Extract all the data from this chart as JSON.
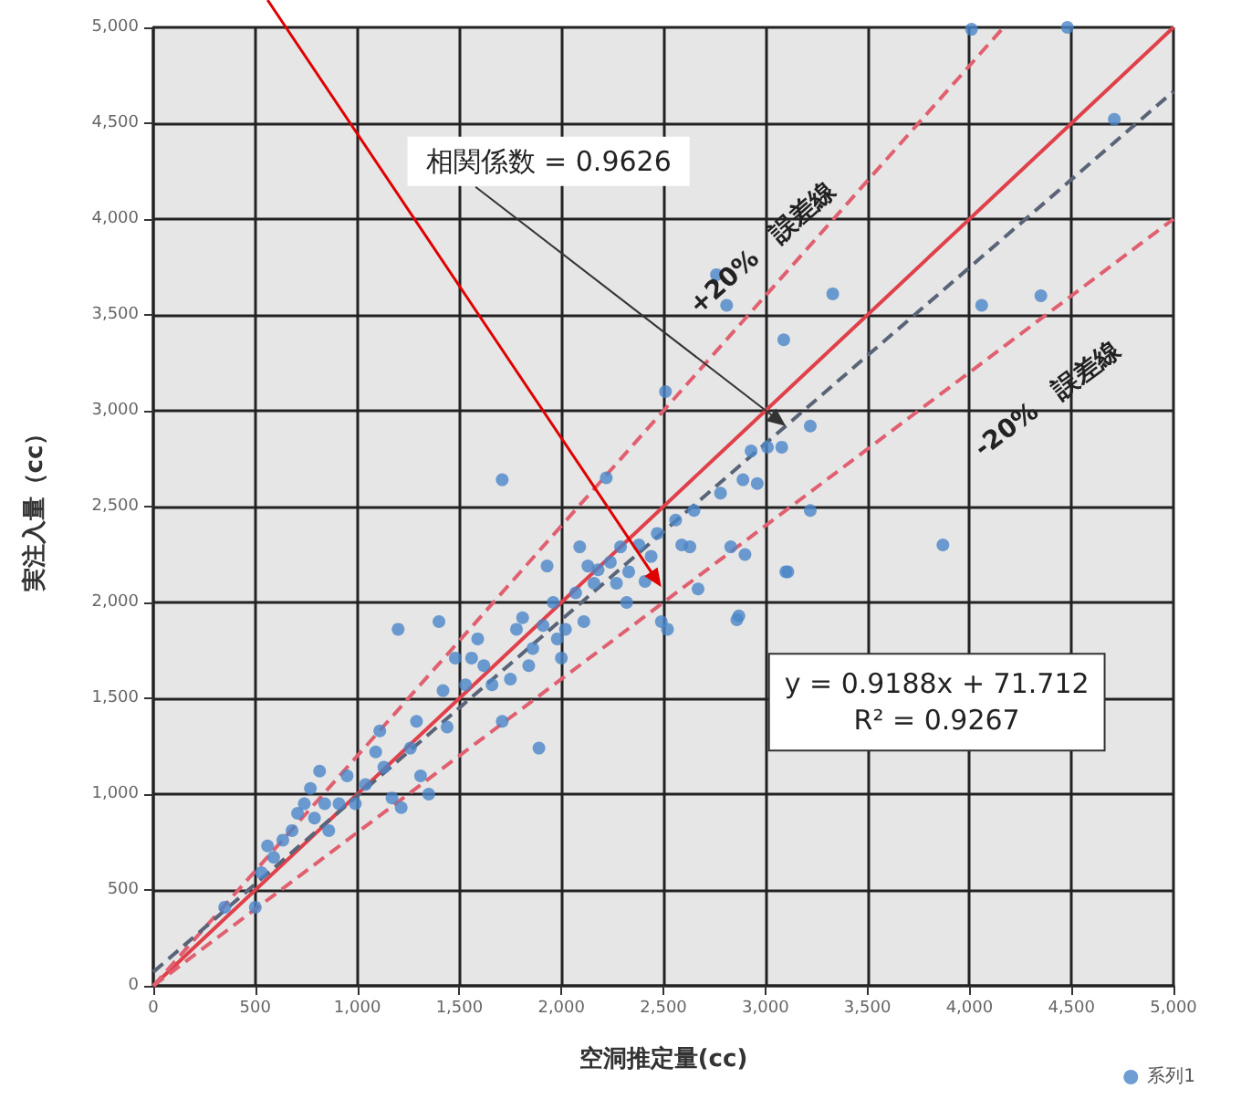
{
  "chart_data": {
    "type": "scatter",
    "xlabel": "空洞推定量(cc)",
    "ylabel": "実注入量（cc）",
    "xlim": [
      0,
      5000
    ],
    "ylim": [
      0,
      5000
    ],
    "xticks": [
      0,
      500,
      {
        "value": 1000,
        "label": "1,000"
      },
      {
        "value": 1500,
        "label": "1,500"
      },
      {
        "value": 2000,
        "label": "2,000"
      },
      {
        "value": 2500,
        "label": "2,500"
      },
      {
        "value": 3000,
        "label": "3,000"
      },
      {
        "value": 3500,
        "label": "3,500"
      },
      {
        "value": 4000,
        "label": "4,000"
      },
      {
        "value": 4500,
        "label": "4,500"
      },
      {
        "value": 5000,
        "label": "5,000"
      }
    ],
    "yticks": [
      0,
      500,
      {
        "value": 1000,
        "label": "1,000"
      },
      {
        "value": 1500,
        "label": "1,500"
      },
      {
        "value": 2000,
        "label": "2,000"
      },
      {
        "value": 2500,
        "label": "2,500"
      },
      {
        "value": 3000,
        "label": "3,000"
      },
      {
        "value": 3500,
        "label": "3,500"
      },
      {
        "value": 4000,
        "label": "4,000"
      },
      {
        "value": 4500,
        "label": "4,500"
      },
      {
        "value": 5000,
        "label": "5,000"
      }
    ],
    "grid": true,
    "legend": "bottom right",
    "series": [
      {
        "name": "系列1",
        "marker": "circle",
        "color": "#4a86c8",
        "x": [
          350,
          500,
          530,
          590,
          560,
          635,
          680,
          707,
          740,
          770,
          815,
          840,
          790,
          860,
          910,
          950,
          990,
          1040,
          1090,
          1110,
          1130,
          1170,
          1215,
          1200,
          1260,
          1290,
          1310,
          1350,
          1400,
          1440,
          1420,
          1480,
          1530,
          1560,
          1590,
          1620,
          1660,
          1710,
          1710,
          1750,
          1780,
          1810,
          1840,
          1860,
          1890,
          1910,
          1930,
          1960,
          1980,
          2000,
          2020,
          2070,
          2090,
          2110,
          2130,
          2160,
          2180,
          2220,
          2240,
          2270,
          2290,
          2320,
          2330,
          2380,
          2410,
          2440,
          2470,
          2490,
          2510,
          2520,
          2560,
          2590,
          2630,
          2650,
          2670,
          2760,
          2810,
          2780,
          2830,
          2870,
          2930,
          2960,
          3010,
          2890,
          3080,
          3090,
          3220,
          3220,
          3110,
          3330,
          3870,
          4060,
          4350,
          4480,
          4710,
          4010,
          2860,
          3100,
          2900
        ],
        "values": [
          410,
          410,
          590,
          670,
          730,
          760,
          810,
          900,
          950,
          1030,
          1120,
          950,
          875,
          810,
          950,
          1095,
          950,
          1050,
          1220,
          1330,
          1140,
          980,
          930,
          1860,
          1240,
          1380,
          1095,
          1000,
          1900,
          1350,
          1540,
          1710,
          1570,
          1710,
          1810,
          1670,
          1570,
          2640,
          1380,
          1600,
          1860,
          1920,
          1670,
          1760,
          1240,
          1880,
          2190,
          2000,
          1810,
          1710,
          1860,
          2050,
          2290,
          1900,
          2190,
          2100,
          2170,
          2650,
          2210,
          2100,
          2290,
          2000,
          2160,
          2300,
          2110,
          2240,
          2360,
          1900,
          3100,
          1860,
          2430,
          2300,
          2290,
          2480,
          2070,
          3710,
          3550,
          2570,
          2290,
          1930,
          2790,
          2620,
          2810,
          2640,
          2810,
          3370,
          2920,
          2480,
          2160,
          3610,
          2300,
          3550,
          3600,
          5000,
          4520,
          4990,
          1910,
          2160,
          2250
        ]
      },
      {
        "type": "line",
        "marker": "none",
        "color": "#e0404a",
        "line_style": "solid",
        "x": [
          0,
          5000
        ],
        "values": [
          0,
          5000
        ]
      },
      {
        "type": "line",
        "marker": "none",
        "color": "#e06070",
        "line_style": "dashed",
        "x": [
          0,
          4167
        ],
        "values": [
          0,
          5000
        ]
      },
      {
        "type": "line",
        "marker": "none",
        "color": "#e06070",
        "line_style": "dashed",
        "x": [
          0,
          5000
        ],
        "values": [
          0,
          4000
        ]
      },
      {
        "type": "line",
        "marker": "none",
        "color": "#5a6478",
        "line_style": "dashed",
        "x": [
          0,
          5000
        ],
        "values": [
          72,
          4666
        ]
      }
    ],
    "annotations": [
      "相関係数 = 0.9626",
      "+20%　誤差線",
      "-20%　誤差線",
      "y = 0.9188x + 71.712\nR² = 0.9267"
    ]
  }
}
